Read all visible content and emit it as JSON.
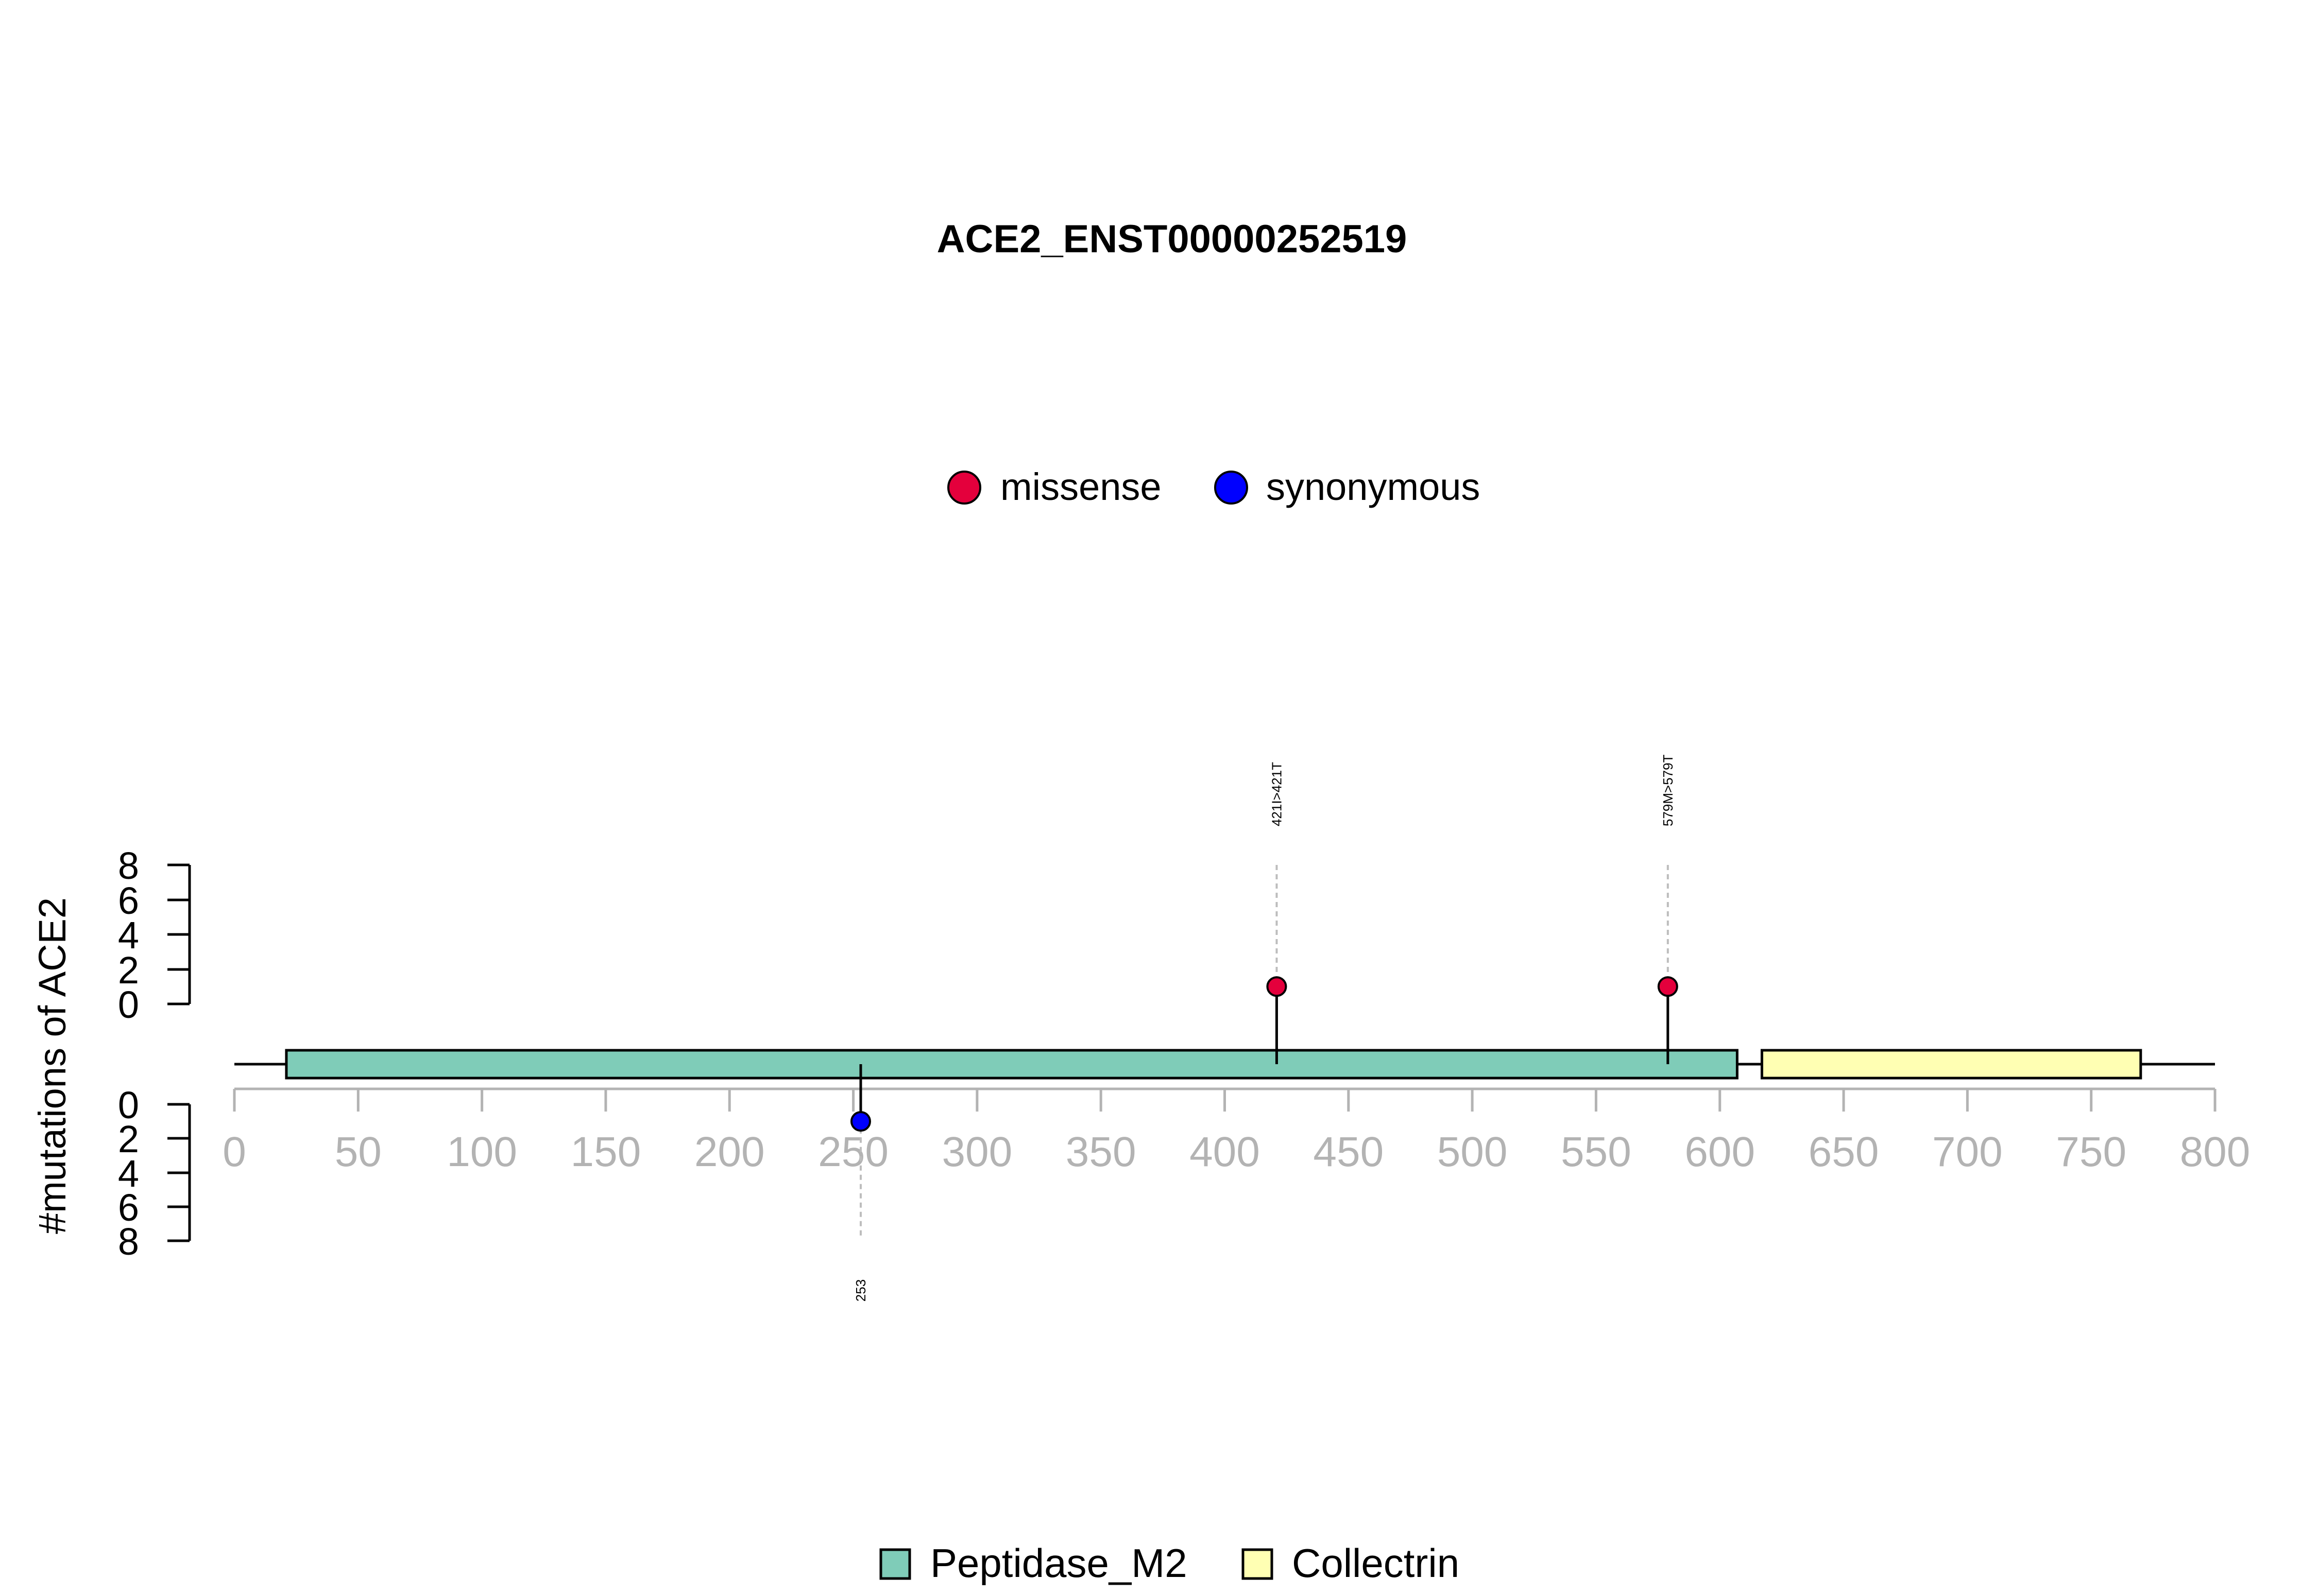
{
  "chart_data": {
    "type": "lollipop",
    "title": "ACE2_ENST00000252519",
    "ylabel": "#mutations of ACE2",
    "xlim": [
      0,
      800
    ],
    "x_ticks": [
      0,
      50,
      100,
      150,
      200,
      250,
      300,
      350,
      400,
      450,
      500,
      550,
      600,
      650,
      700,
      750,
      800
    ],
    "x_tick_labels": [
      "0",
      "50",
      "100",
      "150",
      "200",
      "250",
      "300",
      "350",
      "400",
      "450",
      "500",
      "550",
      "600",
      "650",
      "700",
      "750",
      "800"
    ],
    "y_upper_ticks": [
      "0",
      "2",
      "4",
      "6",
      "8"
    ],
    "y_lower_ticks": [
      "0",
      "2",
      "4",
      "6",
      "8"
    ],
    "ylim": [
      0,
      8
    ],
    "protein_length": 805,
    "mutation_legend": [
      {
        "label": "missense",
        "color": "#e4003c"
      },
      {
        "label": "synonymous",
        "color": "#0000ff"
      }
    ],
    "domain_legend": [
      {
        "label": "Peptidase_M2",
        "color": "#7fccb8"
      },
      {
        "label": "Collectrin",
        "color": "#ffffb3"
      }
    ],
    "domains": [
      {
        "name": "Peptidase_M2",
        "start": 21,
        "end": 607,
        "color": "#7fccb8"
      },
      {
        "name": "Collectrin",
        "start": 617,
        "end": 770,
        "color": "#ffffb3"
      }
    ],
    "mutations": [
      {
        "position": 421,
        "count": 1,
        "type": "missense",
        "label": "421I>421T",
        "side": "up",
        "color": "#e4003c"
      },
      {
        "position": 579,
        "count": 1,
        "type": "missense",
        "label": "579M>579T",
        "side": "up",
        "color": "#e4003c"
      },
      {
        "position": 253,
        "count": 1,
        "type": "synonymous",
        "label": "253",
        "side": "down",
        "color": "#0000ff"
      }
    ]
  }
}
